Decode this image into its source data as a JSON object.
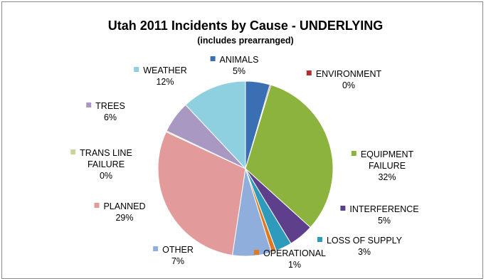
{
  "chart_data": {
    "type": "pie",
    "title": "Utah 2011 Incidents by Cause - UNDERLYING",
    "subtitle": "(includes prearranged)",
    "slices": [
      {
        "label_lines": [
          "ANIMALS"
        ],
        "pct_label": "5%",
        "value": 4.5,
        "color": "#3a6fb4"
      },
      {
        "label_lines": [
          "ENVIRONMENT"
        ],
        "pct_label": "0%",
        "value": 0.2,
        "color": "#b03030"
      },
      {
        "label_lines": [
          "EQUIPMENT",
          "FAILURE"
        ],
        "pct_label": "32%",
        "value": 32,
        "color": "#8cb33e"
      },
      {
        "label_lines": [
          "INTERFERENCE"
        ],
        "pct_label": "5%",
        "value": 4.6,
        "color": "#5e3f8c"
      },
      {
        "label_lines": [
          "LOSS OF SUPPLY"
        ],
        "pct_label": "3%",
        "value": 3,
        "color": "#2e9bbd"
      },
      {
        "label_lines": [
          "OPERATIONAL"
        ],
        "pct_label": "1%",
        "value": 0.9,
        "color": "#e07a20"
      },
      {
        "label_lines": [
          "OTHER"
        ],
        "pct_label": "7%",
        "value": 7.2,
        "color": "#8faedc"
      },
      {
        "label_lines": [
          "PLANNED"
        ],
        "pct_label": "29%",
        "value": 29.5,
        "color": "#e39a9a"
      },
      {
        "label_lines": [
          "TRANS LINE",
          "FAILURE"
        ],
        "pct_label": "0%",
        "value": 0.2,
        "color": "#c6d79e"
      },
      {
        "label_lines": [
          "TREES"
        ],
        "pct_label": "6%",
        "value": 5.9,
        "color": "#a898c2"
      },
      {
        "label_lines": [
          "WEATHER"
        ],
        "pct_label": "12%",
        "value": 12,
        "color": "#8fd0e0"
      }
    ]
  }
}
